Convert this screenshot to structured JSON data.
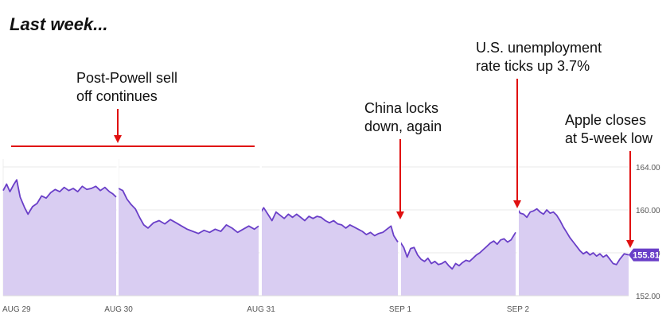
{
  "heading": "Last week...",
  "annotations": [
    {
      "lines": [
        "Post-Powell sell",
        "off continues"
      ],
      "x": 148,
      "arrow_to": 180
    },
    {
      "lines": [
        "China locks",
        "down, again"
      ],
      "x": 503,
      "arrow_to": 276
    },
    {
      "lines": [
        "U.S. unemployment",
        "rate ticks up 3.7%"
      ],
      "x": 650,
      "arrow_to": 262
    },
    {
      "lines": [
        "Apple closes",
        "at 5-week low"
      ],
      "x": 792,
      "arrow_to": 312
    }
  ],
  "chart_data": {
    "type": "area",
    "title": "",
    "xlabel": "",
    "ylabel": "",
    "ylim": [
      152,
      165
    ],
    "yticks": [
      "164.00",
      "160.00",
      "156.00",
      "152.00"
    ],
    "yticks_values": [
      164,
      160,
      156,
      152
    ],
    "xticks": [
      "AUG 29",
      "AUG 30",
      "AUG 31",
      "SEP 1",
      "SEP 2"
    ],
    "last_value_label": "155.81",
    "colors": {
      "line": "#6a3fc8",
      "fill": "#d9cdf2",
      "badge": "#6a3fc8",
      "annotation": "#e01010"
    },
    "sessions": [
      {
        "label": "AUG 29",
        "points": [
          [
            0,
            161.8
          ],
          [
            0.03,
            162.4
          ],
          [
            0.06,
            161.7
          ],
          [
            0.09,
            162.3
          ],
          [
            0.12,
            162.8
          ],
          [
            0.15,
            161.2
          ],
          [
            0.19,
            160.2
          ],
          [
            0.22,
            159.6
          ],
          [
            0.26,
            160.3
          ],
          [
            0.3,
            160.6
          ],
          [
            0.34,
            161.3
          ],
          [
            0.38,
            161.1
          ],
          [
            0.42,
            161.6
          ],
          [
            0.46,
            161.9
          ],
          [
            0.5,
            161.7
          ],
          [
            0.54,
            162.1
          ],
          [
            0.58,
            161.8
          ],
          [
            0.62,
            162.0
          ],
          [
            0.66,
            161.7
          ],
          [
            0.7,
            162.2
          ],
          [
            0.74,
            161.9
          ],
          [
            0.78,
            162.0
          ],
          [
            0.82,
            162.2
          ],
          [
            0.86,
            161.8
          ],
          [
            0.9,
            162.1
          ],
          [
            0.94,
            161.7
          ],
          [
            0.97,
            161.5
          ],
          [
            1.0,
            161.2
          ]
        ]
      },
      {
        "label": "AUG 30",
        "points": [
          [
            0,
            162.0
          ],
          [
            0.03,
            161.8
          ],
          [
            0.06,
            161.0
          ],
          [
            0.09,
            160.5
          ],
          [
            0.12,
            160.1
          ],
          [
            0.15,
            159.3
          ],
          [
            0.18,
            158.6
          ],
          [
            0.21,
            158.3
          ],
          [
            0.25,
            158.8
          ],
          [
            0.29,
            159.0
          ],
          [
            0.33,
            158.7
          ],
          [
            0.37,
            159.1
          ],
          [
            0.41,
            158.8
          ],
          [
            0.45,
            158.5
          ],
          [
            0.49,
            158.2
          ],
          [
            0.53,
            158.0
          ],
          [
            0.57,
            157.8
          ],
          [
            0.61,
            158.1
          ],
          [
            0.65,
            157.9
          ],
          [
            0.69,
            158.2
          ],
          [
            0.73,
            158.0
          ],
          [
            0.77,
            158.6
          ],
          [
            0.81,
            158.3
          ],
          [
            0.85,
            157.9
          ],
          [
            0.89,
            158.2
          ],
          [
            0.93,
            158.5
          ],
          [
            0.97,
            158.2
          ],
          [
            1.0,
            158.5
          ]
        ]
      },
      {
        "label": "AUG 31",
        "points": [
          [
            0,
            159.8
          ],
          [
            0.02,
            160.2
          ],
          [
            0.05,
            159.6
          ],
          [
            0.08,
            159.0
          ],
          [
            0.11,
            159.8
          ],
          [
            0.14,
            159.5
          ],
          [
            0.17,
            159.2
          ],
          [
            0.2,
            159.6
          ],
          [
            0.23,
            159.3
          ],
          [
            0.26,
            159.6
          ],
          [
            0.29,
            159.3
          ],
          [
            0.32,
            159.0
          ],
          [
            0.35,
            159.4
          ],
          [
            0.38,
            159.2
          ],
          [
            0.41,
            159.4
          ],
          [
            0.44,
            159.3
          ],
          [
            0.47,
            159.0
          ],
          [
            0.5,
            158.8
          ],
          [
            0.53,
            159.0
          ],
          [
            0.56,
            158.7
          ],
          [
            0.59,
            158.6
          ],
          [
            0.62,
            158.3
          ],
          [
            0.65,
            158.6
          ],
          [
            0.68,
            158.4
          ],
          [
            0.71,
            158.2
          ],
          [
            0.74,
            158.0
          ],
          [
            0.77,
            157.7
          ],
          [
            0.8,
            157.9
          ],
          [
            0.83,
            157.6
          ],
          [
            0.86,
            157.8
          ],
          [
            0.89,
            157.9
          ],
          [
            0.92,
            158.2
          ],
          [
            0.95,
            158.5
          ],
          [
            0.97,
            157.6
          ],
          [
            1.0,
            157.0
          ]
        ]
      },
      {
        "label": "SEP 1",
        "points": [
          [
            0,
            157.0
          ],
          [
            0.03,
            156.5
          ],
          [
            0.06,
            155.6
          ],
          [
            0.09,
            156.4
          ],
          [
            0.12,
            156.5
          ],
          [
            0.15,
            155.8
          ],
          [
            0.18,
            155.4
          ],
          [
            0.21,
            155.2
          ],
          [
            0.24,
            155.5
          ],
          [
            0.27,
            155.0
          ],
          [
            0.3,
            155.2
          ],
          [
            0.33,
            154.9
          ],
          [
            0.36,
            155.0
          ],
          [
            0.39,
            155.2
          ],
          [
            0.42,
            154.8
          ],
          [
            0.45,
            154.5
          ],
          [
            0.48,
            155.0
          ],
          [
            0.51,
            154.8
          ],
          [
            0.54,
            155.1
          ],
          [
            0.57,
            155.3
          ],
          [
            0.6,
            155.2
          ],
          [
            0.63,
            155.5
          ],
          [
            0.66,
            155.8
          ],
          [
            0.69,
            156.0
          ],
          [
            0.72,
            156.3
          ],
          [
            0.75,
            156.6
          ],
          [
            0.78,
            156.9
          ],
          [
            0.81,
            157.1
          ],
          [
            0.84,
            156.8
          ],
          [
            0.87,
            157.2
          ],
          [
            0.9,
            157.3
          ],
          [
            0.93,
            157.0
          ],
          [
            0.96,
            157.2
          ],
          [
            1.0,
            157.9
          ]
        ]
      },
      {
        "label": "SEP 2",
        "points": [
          [
            0,
            160.0
          ],
          [
            0.02,
            159.7
          ],
          [
            0.05,
            159.6
          ],
          [
            0.08,
            159.3
          ],
          [
            0.11,
            159.8
          ],
          [
            0.14,
            159.9
          ],
          [
            0.17,
            160.1
          ],
          [
            0.2,
            159.8
          ],
          [
            0.23,
            159.6
          ],
          [
            0.26,
            160.0
          ],
          [
            0.29,
            159.7
          ],
          [
            0.32,
            159.8
          ],
          [
            0.35,
            159.5
          ],
          [
            0.38,
            159.0
          ],
          [
            0.41,
            158.4
          ],
          [
            0.44,
            157.9
          ],
          [
            0.47,
            157.4
          ],
          [
            0.5,
            157.0
          ],
          [
            0.53,
            156.6
          ],
          [
            0.56,
            156.2
          ],
          [
            0.59,
            155.9
          ],
          [
            0.62,
            156.1
          ],
          [
            0.65,
            155.8
          ],
          [
            0.68,
            156.0
          ],
          [
            0.71,
            155.7
          ],
          [
            0.74,
            155.9
          ],
          [
            0.77,
            155.6
          ],
          [
            0.8,
            155.8
          ],
          [
            0.83,
            155.4
          ],
          [
            0.86,
            155.0
          ],
          [
            0.89,
            154.9
          ],
          [
            0.92,
            155.4
          ],
          [
            0.96,
            155.9
          ],
          [
            1.0,
            155.81
          ]
        ]
      }
    ]
  }
}
